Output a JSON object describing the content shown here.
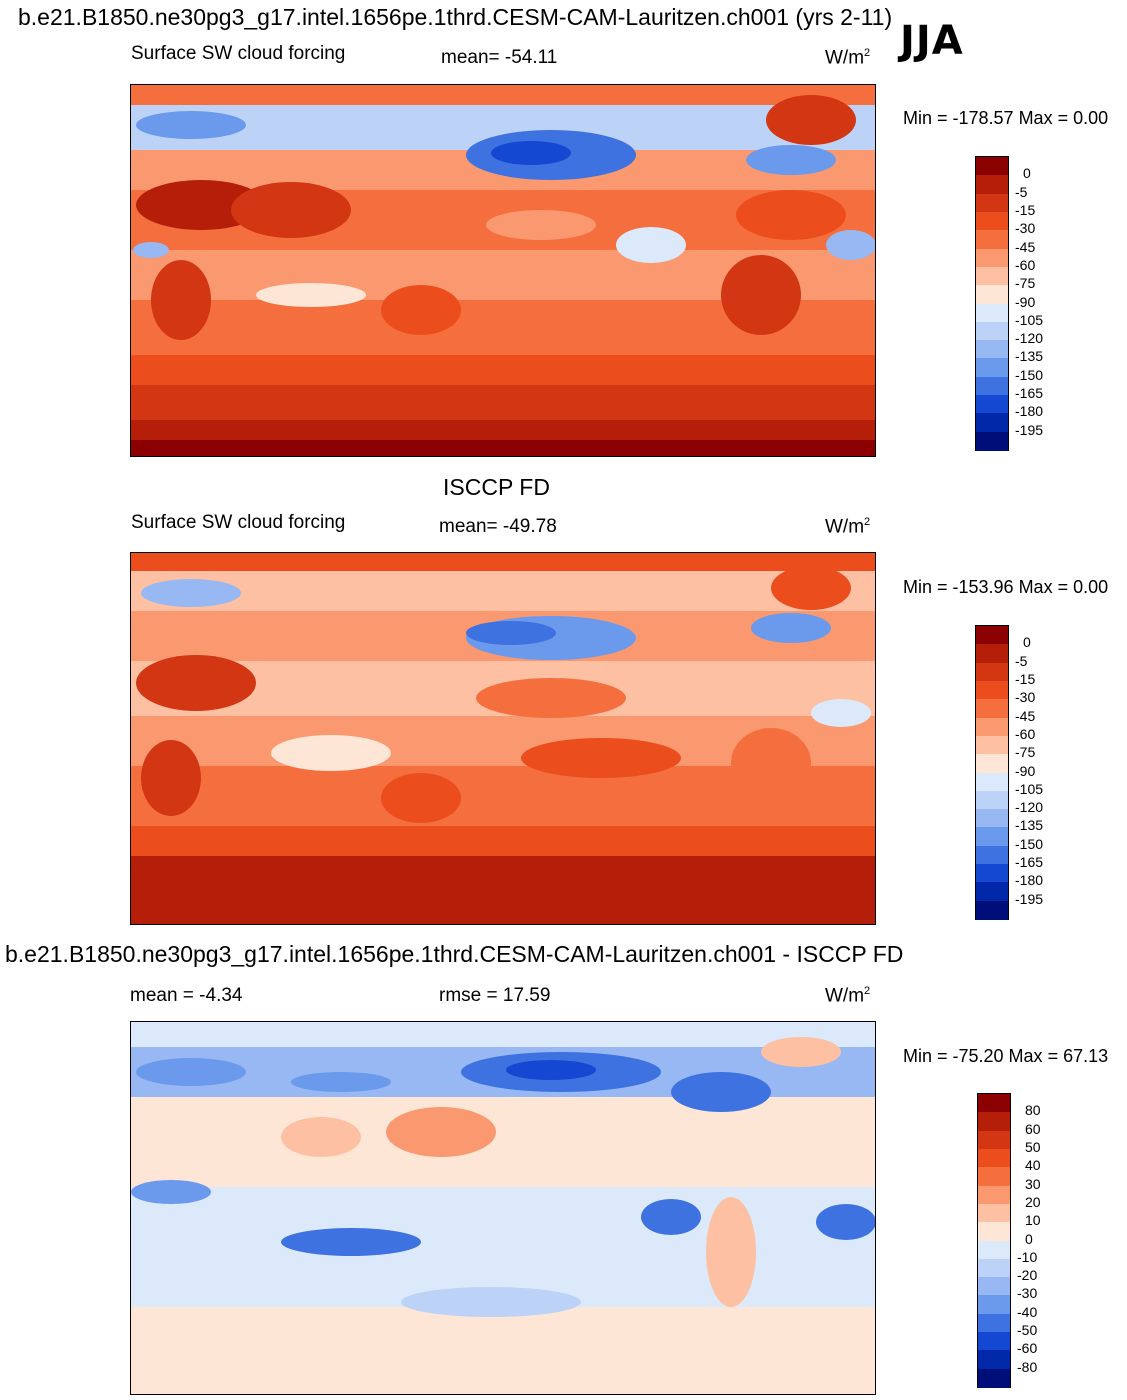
{
  "page": {
    "top_title": "b.e21.B1850.ne30pg3_g17.intel.1656pe.1thrd.CESM-CAM-Lauritzen.ch001 (yrs 2-11)",
    "season": "JJA",
    "diff_title": "b.e21.B1850.ne30pg3_g17.intel.1656pe.1thrd.CESM-CAM-Lauritzen.ch001 - ISCCP FD"
  },
  "chart_data": [
    {
      "type": "heatmap",
      "panel": "model",
      "title": "",
      "variable": "Surface SW cloud forcing",
      "stat": "mean= -54.11",
      "units": "W/m",
      "units_sup": "2",
      "minmax": "Min = -178.57 Max =   0.00",
      "min": -178.57,
      "max": 0.0,
      "mean": -54.11,
      "levels": [
        "0",
        "-5",
        "-15",
        "-30",
        "-45",
        "-60",
        "-75",
        "-90",
        "-105",
        "-120",
        "-135",
        "-150",
        "-165",
        "-180",
        "-195"
      ],
      "colors": [
        "#8b0000",
        "#b51f0a",
        "#d33612",
        "#ec4d1c",
        "#f56f3e",
        "#fa9870",
        "#fdc0a2",
        "#fee6d6",
        "#dbe9fb",
        "#bcd3f7",
        "#97b8f2",
        "#6b99ec",
        "#3d72e0",
        "#1448d2",
        "#0028a8",
        "#000e7a"
      ]
    },
    {
      "type": "heatmap",
      "panel": "obs",
      "title": "ISCCP FD",
      "variable": "Surface SW cloud forcing",
      "stat": "mean= -49.78",
      "units": "W/m",
      "units_sup": "2",
      "minmax": "Min = -153.96 Max =   0.00",
      "min": -153.96,
      "max": 0.0,
      "mean": -49.78,
      "levels": [
        "0",
        "-5",
        "-15",
        "-30",
        "-45",
        "-60",
        "-75",
        "-90",
        "-105",
        "-120",
        "-135",
        "-150",
        "-165",
        "-180",
        "-195"
      ],
      "colors": [
        "#8b0000",
        "#b51f0a",
        "#d33612",
        "#ec4d1c",
        "#f56f3e",
        "#fa9870",
        "#fdc0a2",
        "#fee6d6",
        "#dbe9fb",
        "#bcd3f7",
        "#97b8f2",
        "#6b99ec",
        "#3d72e0",
        "#1448d2",
        "#0028a8",
        "#000e7a"
      ]
    },
    {
      "type": "heatmap",
      "panel": "difference",
      "title": "",
      "stat_left": "mean =  -4.34",
      "stat_mid": "rmse =  17.59",
      "units": "W/m",
      "units_sup": "2",
      "minmax": "Min = -75.20 Max =  67.13",
      "min": -75.2,
      "max": 67.13,
      "mean": -4.34,
      "rmse": 17.59,
      "levels": [
        "80",
        "60",
        "50",
        "40",
        "30",
        "20",
        "10",
        "0",
        "-10",
        "-20",
        "-30",
        "-40",
        "-50",
        "-60",
        "-80"
      ],
      "colors": [
        "#8b0000",
        "#b51f0a",
        "#d33612",
        "#ec4d1c",
        "#f56f3e",
        "#fa9870",
        "#fdc0a2",
        "#fee6d6",
        "#dbe9fb",
        "#bcd3f7",
        "#97b8f2",
        "#6b99ec",
        "#3d72e0",
        "#1448d2",
        "#0028a8",
        "#000e7a"
      ]
    }
  ]
}
